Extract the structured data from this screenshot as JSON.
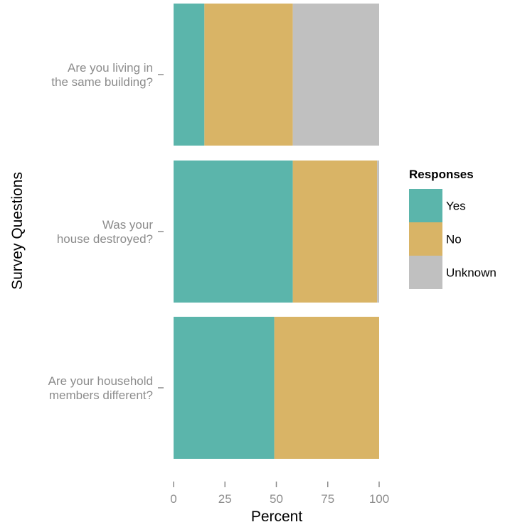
{
  "chart_data": {
    "type": "bar",
    "orientation": "horizontal",
    "stacked": true,
    "categories": [
      [
        "Are you living in",
        "the same building?"
      ],
      [
        "Was your",
        "house destroyed?"
      ],
      [
        "Are your household",
        "members different?"
      ]
    ],
    "series": [
      {
        "name": "Yes",
        "color": "#5bb5ab",
        "values": [
          15,
          58,
          49
        ]
      },
      {
        "name": "No",
        "color": "#d9b466",
        "values": [
          43,
          41,
          51
        ]
      },
      {
        "name": "Unknown",
        "color": "#c0c0c0",
        "values": [
          42,
          1,
          0
        ]
      }
    ],
    "xlabel": "Percent",
    "ylabel": "Survey Questions",
    "xlim": [
      0,
      100
    ],
    "xticks": [
      0,
      25,
      50,
      75,
      100
    ],
    "legend": {
      "title": "Responses",
      "position": "right"
    },
    "grid": false
  }
}
